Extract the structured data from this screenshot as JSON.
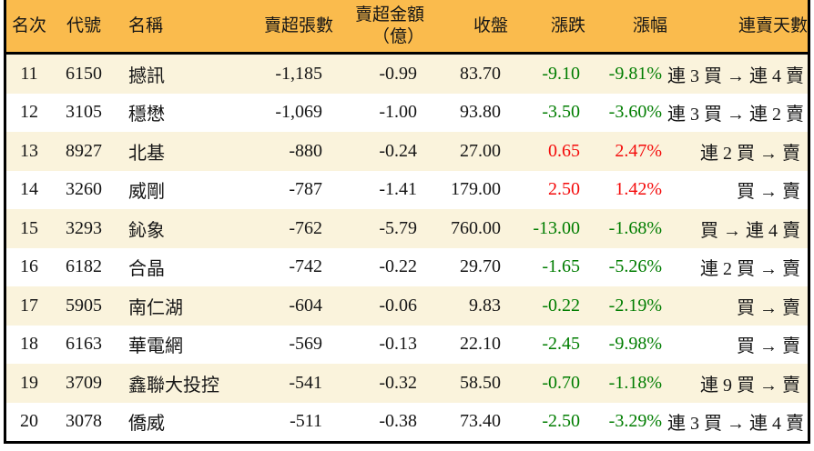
{
  "chart_data": {
    "type": "table",
    "columns": [
      {
        "key": "rank",
        "label": "名次"
      },
      {
        "key": "code",
        "label": "代號"
      },
      {
        "key": "name",
        "label": "名稱"
      },
      {
        "key": "sell_volume",
        "label": "賣超張數"
      },
      {
        "key": "sell_amount",
        "label": "賣超金額\n（億）"
      },
      {
        "key": "close",
        "label": "收盤"
      },
      {
        "key": "change",
        "label": "漲跌"
      },
      {
        "key": "change_pct",
        "label": "漲幅"
      },
      {
        "key": "streak",
        "label": "連賣天數"
      }
    ],
    "rows": [
      {
        "rank": "11",
        "code": "6150",
        "name": "撼訊",
        "sell_volume": "-1,185",
        "sell_amount": "-0.99",
        "close": "83.70",
        "change": "-9.10",
        "change_pct": "-9.81%",
        "streak": "連 3 買 → 連 4 賣",
        "trend": "down"
      },
      {
        "rank": "12",
        "code": "3105",
        "name": "穩懋",
        "sell_volume": "-1,069",
        "sell_amount": "-1.00",
        "close": "93.80",
        "change": "-3.50",
        "change_pct": "-3.60%",
        "streak": "連 3 買 → 連 2 賣",
        "trend": "down"
      },
      {
        "rank": "13",
        "code": "8927",
        "name": "北基",
        "sell_volume": "-880",
        "sell_amount": "-0.24",
        "close": "27.00",
        "change": "0.65",
        "change_pct": "2.47%",
        "streak": "連 2 買 → 賣",
        "trend": "up"
      },
      {
        "rank": "14",
        "code": "3260",
        "name": "威剛",
        "sell_volume": "-787",
        "sell_amount": "-1.41",
        "close": "179.00",
        "change": "2.50",
        "change_pct": "1.42%",
        "streak": "買 → 賣",
        "trend": "up"
      },
      {
        "rank": "15",
        "code": "3293",
        "name": "鈊象",
        "sell_volume": "-762",
        "sell_amount": "-5.79",
        "close": "760.00",
        "change": "-13.00",
        "change_pct": "-1.68%",
        "streak": "買 → 連 4 賣",
        "trend": "down"
      },
      {
        "rank": "16",
        "code": "6182",
        "name": "合晶",
        "sell_volume": "-742",
        "sell_amount": "-0.22",
        "close": "29.70",
        "change": "-1.65",
        "change_pct": "-5.26%",
        "streak": "連 2 買 → 賣",
        "trend": "down"
      },
      {
        "rank": "17",
        "code": "5905",
        "name": "南仁湖",
        "sell_volume": "-604",
        "sell_amount": "-0.06",
        "close": "9.83",
        "change": "-0.22",
        "change_pct": "-2.19%",
        "streak": "買 → 賣",
        "trend": "down"
      },
      {
        "rank": "18",
        "code": "6163",
        "name": "華電網",
        "sell_volume": "-569",
        "sell_amount": "-0.13",
        "close": "22.10",
        "change": "-2.45",
        "change_pct": "-9.98%",
        "streak": "買 → 賣",
        "trend": "down"
      },
      {
        "rank": "19",
        "code": "3709",
        "name": "鑫聯大投控",
        "sell_volume": "-541",
        "sell_amount": "-0.32",
        "close": "58.50",
        "change": "-0.70",
        "change_pct": "-1.18%",
        "streak": "連 9 買 → 賣",
        "trend": "down"
      },
      {
        "rank": "20",
        "code": "3078",
        "name": "僑威",
        "sell_volume": "-511",
        "sell_amount": "-0.38",
        "close": "73.40",
        "change": "-2.50",
        "change_pct": "-3.29%",
        "streak": "連 3 買 → 連 4 賣",
        "trend": "down"
      }
    ]
  },
  "colors": {
    "header_bg": "#FABB4D",
    "row_alt_bg": "#FAF3DC",
    "row_bg": "#FFFFFF",
    "up": "#F40B0B",
    "down": "#007D00",
    "border": "#000000"
  }
}
